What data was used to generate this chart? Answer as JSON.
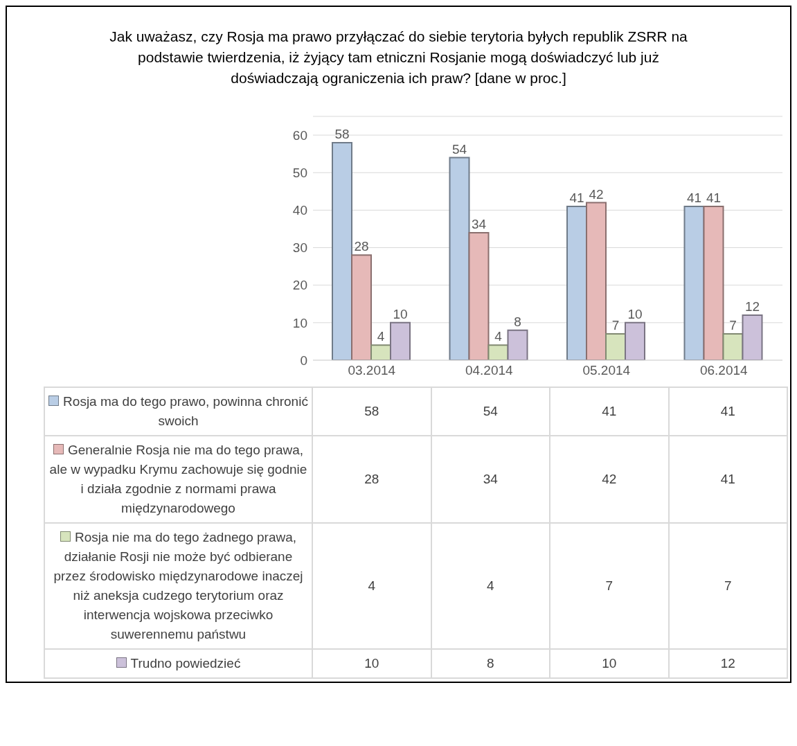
{
  "chart_data": {
    "type": "bar",
    "title": "Jak uważasz, czy Rosja ma prawo przyłączać do siebie terytoria byłych republik ZSRR na podstawie twierdzenia, iż żyjący tam etniczni Rosjanie mogą doświadczyć lub już doświadczają ograniczenia ich praw? [dane w proc.]",
    "categories": [
      "03.2014",
      "04.2014",
      "05.2014",
      "06.2014"
    ],
    "series": [
      {
        "name": "Rosja ma do tego prawo, powinna chronić swoich",
        "color": "#b9cde5",
        "values": [
          58,
          54,
          41,
          41
        ],
        "value_labels": [
          "58",
          "54",
          "41",
          "41"
        ]
      },
      {
        "name": "Generalnie Rosja nie ma do tego prawa, ale w wypadku Krymu zachowuje się godnie i działa zgodnie z normami prawa międzynarodowego",
        "color": "#e6b9b8",
        "values": [
          28,
          34,
          42,
          41
        ],
        "value_labels": [
          "28",
          "34",
          "42",
          "41"
        ]
      },
      {
        "name": "Rosja nie ma do tego żadnego prawa, działanie Rosji nie może być odbierane przez środowisko międzynarodowe inaczej niż aneksja cudzego terytorium oraz interwencja wojskowa przeciwko suwerennemu państwu",
        "color": "#d7e4bd",
        "values": [
          4,
          4,
          7,
          7
        ],
        "value_labels": [
          "4",
          "4",
          "7",
          "7"
        ]
      },
      {
        "name": "Trudno powiedzieć",
        "color": "#ccc1da",
        "values": [
          10,
          8,
          10,
          12
        ],
        "value_labels": [
          "10",
          "8",
          "10",
          "12"
        ]
      }
    ],
    "ylim": [
      0,
      65
    ],
    "yticks": [
      0,
      10,
      20,
      30,
      40,
      50,
      60
    ],
    "grid": "y",
    "legend": "bottom",
    "annotations": [
      "58",
      "54",
      "41",
      "41",
      "28",
      "34",
      "42",
      "41",
      "4",
      "4",
      "7",
      "7",
      "10",
      "8",
      "10",
      "12"
    ]
  }
}
